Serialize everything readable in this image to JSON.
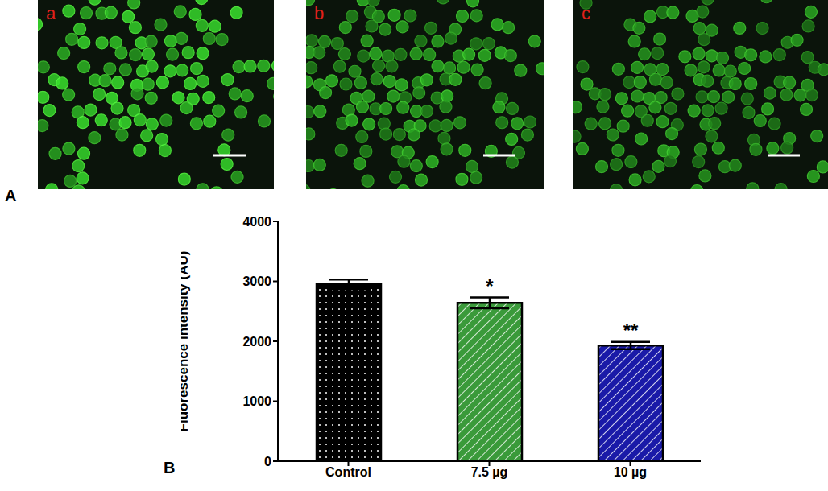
{
  "panel_labels": [
    "A",
    "B"
  ],
  "image_labels": [
    "a",
    "b",
    "c"
  ],
  "chart_data": {
    "type": "bar",
    "y_label": "Fluorescence intensity (AU)",
    "categories": [
      "Control",
      "7.5 µg",
      "10 µg"
    ],
    "values": [
      2950,
      2640,
      1930
    ],
    "errors": [
      80,
      90,
      60
    ],
    "significance": [
      null,
      "*",
      "**"
    ],
    "colors": [
      "#000000",
      "#3a9a3a",
      "#1a1aa8"
    ],
    "ylim": [
      0,
      4000
    ],
    "yticks": [
      0,
      1000,
      2000,
      3000,
      4000
    ],
    "grid": false
  }
}
